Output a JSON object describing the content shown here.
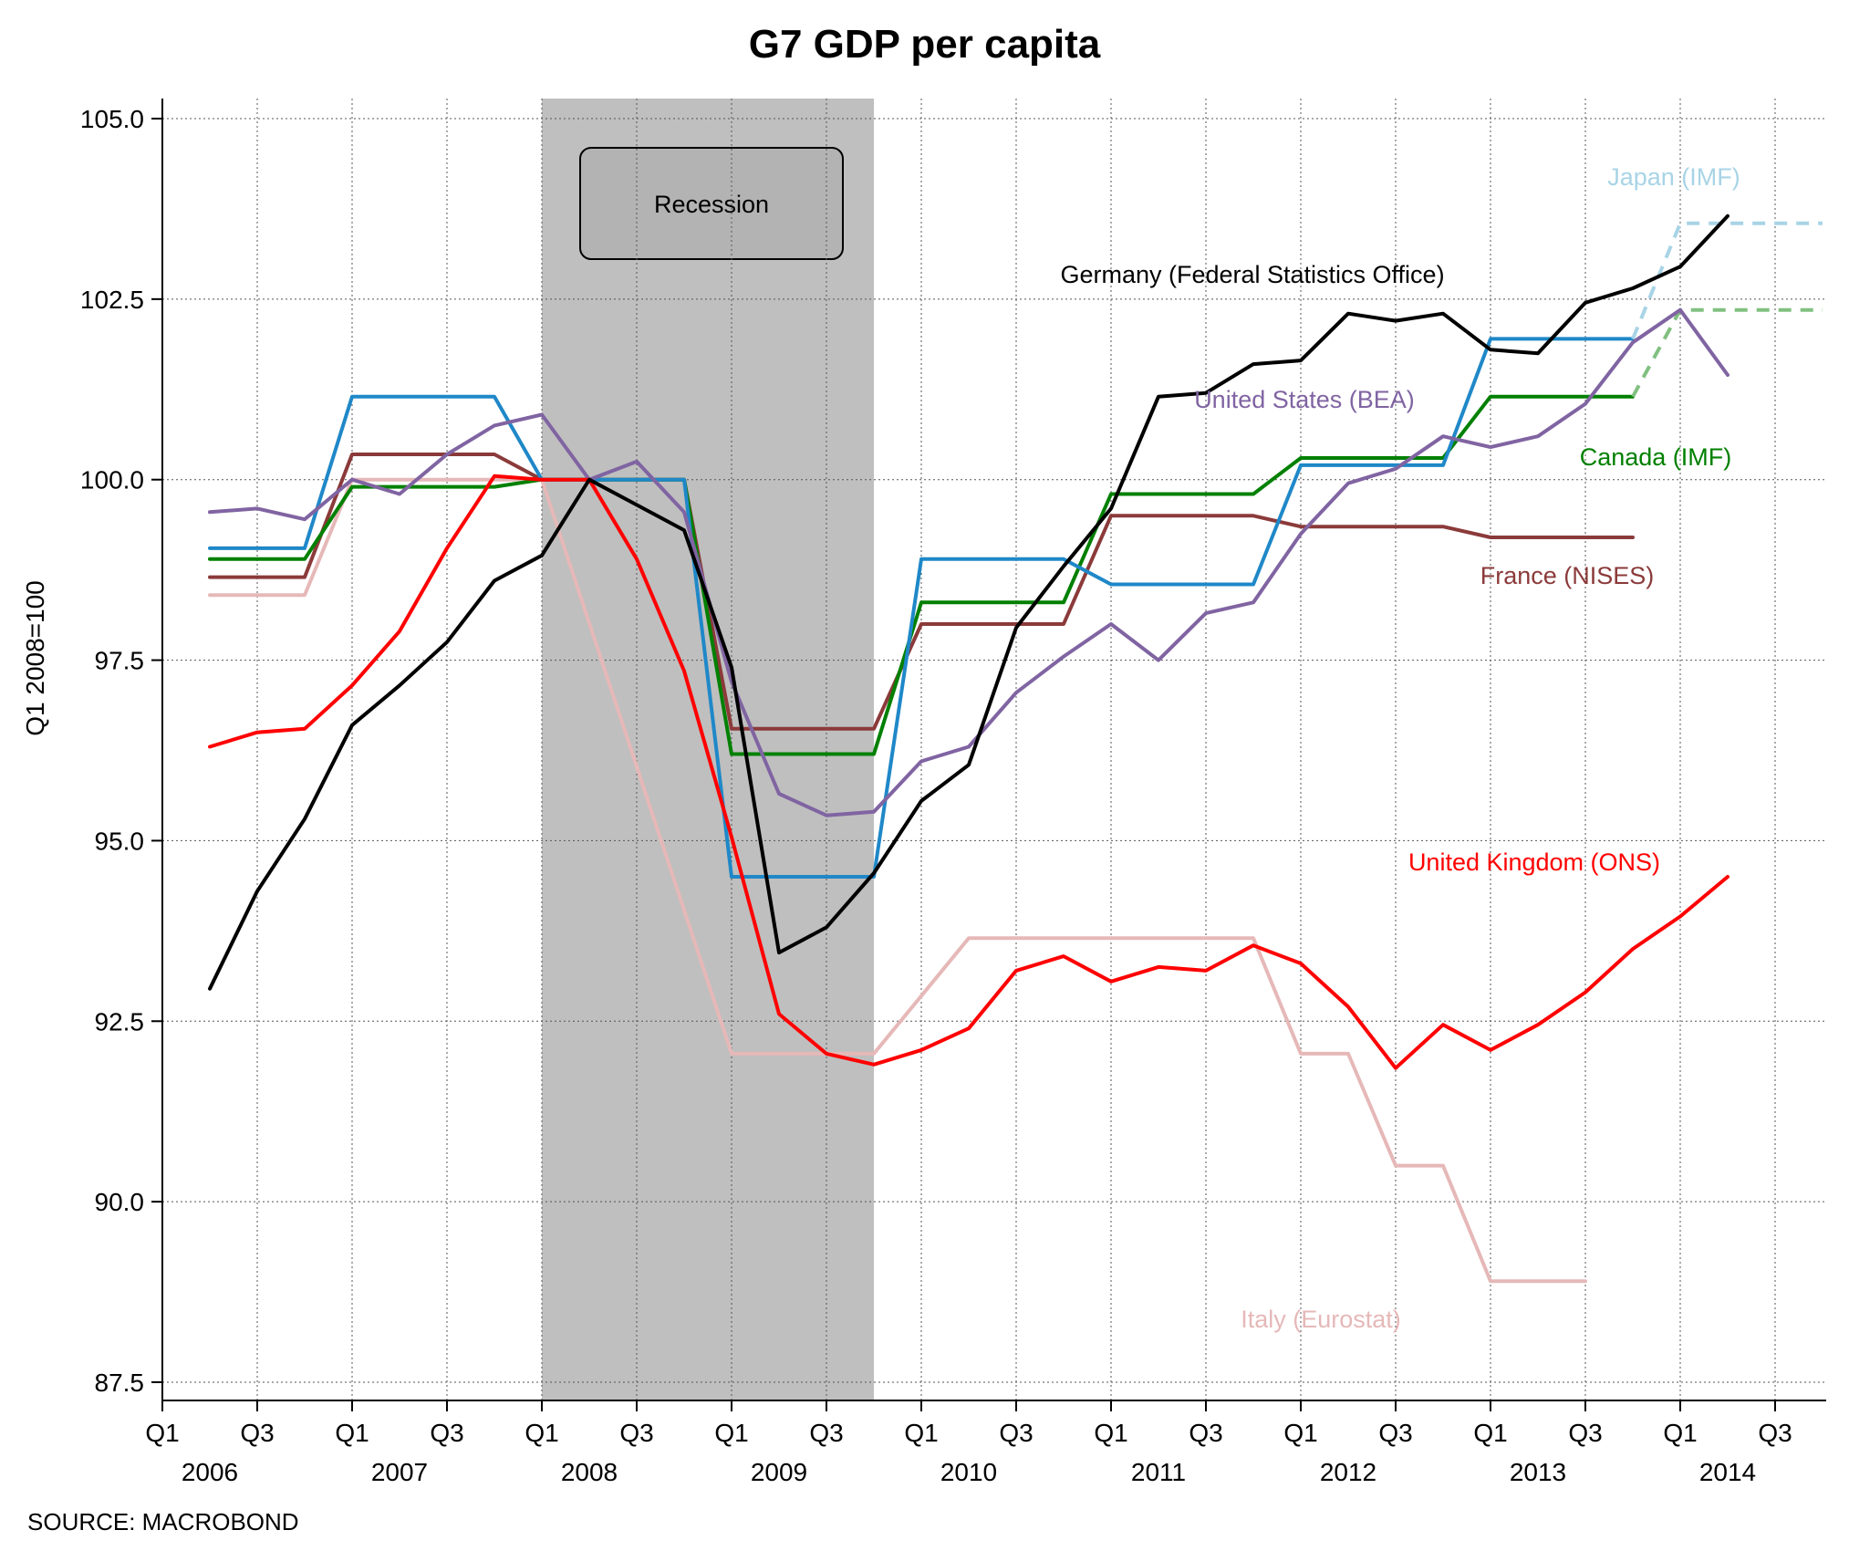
{
  "chart_data": {
    "type": "line",
    "title": "G7 GDP per capita",
    "ylabel": "Q1 2008=100",
    "source": "SOURCE: MACROBOND",
    "ylim": [
      87.5,
      105.0
    ],
    "yticks": [
      "87.5",
      "90.0",
      "92.5",
      "95.0",
      "97.5",
      "100.0",
      "102.5",
      "105.0"
    ],
    "xticks": [
      "Q1",
      "Q3",
      "Q1",
      "Q3",
      "Q1",
      "Q3",
      "Q1",
      "Q3",
      "Q1",
      "Q3",
      "Q1",
      "Q3",
      "Q1",
      "Q3",
      "Q1",
      "Q3",
      "Q1",
      "Q3"
    ],
    "years": [
      "2006",
      "2007",
      "2008",
      "2009",
      "2010",
      "2011",
      "2012",
      "2013",
      "2014"
    ],
    "x_start": "2006 Q1",
    "grid": true,
    "recession": {
      "label": "Recession",
      "start": "2008 Q1",
      "end": "2009 Q3"
    },
    "series": [
      {
        "name": "Italy (Eurostat)",
        "color": "#e6b8b8",
        "label_color": "#e6b8b8",
        "points": [
          [
            "2006 Q2",
            98.4
          ],
          [
            "2006 Q4",
            98.4
          ],
          [
            "2007 Q1",
            100.0
          ],
          [
            "2007 Q4",
            100.0
          ],
          [
            "2008 Q1",
            100.0
          ],
          [
            "2009 Q1",
            92.05
          ],
          [
            "2009 Q4",
            92.05
          ],
          [
            "2010 Q2",
            93.65
          ],
          [
            "2011 Q4",
            93.65
          ],
          [
            "2012 Q1",
            92.05
          ],
          [
            "2012 Q2",
            92.05
          ],
          [
            "2012 Q3",
            90.5
          ],
          [
            "2012 Q4",
            90.5
          ],
          [
            "2013 Q1",
            88.9
          ],
          [
            "2013 Q3",
            88.9
          ]
        ]
      },
      {
        "name": "France (NISES)",
        "color": "#8b3a3a",
        "label_color": "#8b3a3a",
        "points": [
          [
            "2006 Q2",
            98.65
          ],
          [
            "2006 Q4",
            98.65
          ],
          [
            "2007 Q1",
            100.35
          ],
          [
            "2007 Q4",
            100.35
          ],
          [
            "2008 Q1",
            100.0
          ],
          [
            "2008 Q4",
            100.0
          ],
          [
            "2009 Q1",
            96.55
          ],
          [
            "2009 Q4",
            96.55
          ],
          [
            "2010 Q1",
            98.0
          ],
          [
            "2010 Q4",
            98.0
          ],
          [
            "2011 Q1",
            99.5
          ],
          [
            "2011 Q4",
            99.5
          ],
          [
            "2012 Q1",
            99.35
          ],
          [
            "2012 Q4",
            99.35
          ],
          [
            "2013 Q1",
            99.2
          ],
          [
            "2013 Q4",
            99.2
          ]
        ]
      },
      {
        "name": "Canada (IMF)",
        "color": "#008000",
        "label_color": "#008000",
        "points": [
          [
            "2006 Q2",
            98.9
          ],
          [
            "2006 Q4",
            98.9
          ],
          [
            "2007 Q1",
            99.9
          ],
          [
            "2007 Q4",
            99.9
          ],
          [
            "2008 Q1",
            100.0
          ],
          [
            "2008 Q4",
            100.0
          ],
          [
            "2009 Q1",
            96.2
          ],
          [
            "2009 Q4",
            96.2
          ],
          [
            "2010 Q1",
            98.3
          ],
          [
            "2010 Q4",
            98.3
          ],
          [
            "2011 Q1",
            99.8
          ],
          [
            "2011 Q4",
            99.8
          ],
          [
            "2012 Q1",
            100.3
          ],
          [
            "2012 Q4",
            100.3
          ],
          [
            "2013 Q1",
            101.15
          ],
          [
            "2013 Q4",
            101.15
          ]
        ],
        "forecast": [
          [
            "2013 Q4",
            101.15
          ],
          [
            "2014 Q1",
            102.35
          ],
          [
            "2014 Q4",
            102.35
          ]
        ],
        "forecast_color": "#80c080"
      },
      {
        "name": "Japan (IMF)",
        "color": "#1f88c8",
        "label_color": "#a8d4e6",
        "points": [
          [
            "2006 Q2",
            99.05
          ],
          [
            "2006 Q4",
            99.05
          ],
          [
            "2007 Q1",
            101.15
          ],
          [
            "2007 Q4",
            101.15
          ],
          [
            "2008 Q1",
            100.0
          ],
          [
            "2008 Q4",
            100.0
          ],
          [
            "2009 Q1",
            94.5
          ],
          [
            "2009 Q4",
            94.5
          ],
          [
            "2010 Q1",
            98.9
          ],
          [
            "2010 Q4",
            98.9
          ],
          [
            "2011 Q1",
            98.55
          ],
          [
            "2011 Q4",
            98.55
          ],
          [
            "2012 Q1",
            100.2
          ],
          [
            "2012 Q4",
            100.2
          ],
          [
            "2013 Q1",
            101.95
          ],
          [
            "2013 Q4",
            101.95
          ]
        ],
        "forecast": [
          [
            "2013 Q4",
            101.95
          ],
          [
            "2014 Q1",
            103.55
          ],
          [
            "2014 Q4",
            103.55
          ]
        ],
        "forecast_color": "#a8d4e6"
      },
      {
        "name": "United States (BEA)",
        "color": "#8064a2",
        "label_color": "#8064a2",
        "points": [
          [
            "2006 Q2",
            99.55
          ],
          [
            "2006 Q3",
            99.6
          ],
          [
            "2006 Q4",
            99.45
          ],
          [
            "2007 Q1",
            100.0
          ],
          [
            "2007 Q2",
            99.8
          ],
          [
            "2007 Q3",
            100.35
          ],
          [
            "2007 Q4",
            100.75
          ],
          [
            "2008 Q1",
            100.9
          ],
          [
            "2008 Q2",
            100.0
          ],
          [
            "2008 Q3",
            100.25
          ],
          [
            "2008 Q4",
            99.55
          ],
          [
            "2009 Q1",
            97.2
          ],
          [
            "2009 Q2",
            95.65
          ],
          [
            "2009 Q3",
            95.35
          ],
          [
            "2009 Q4",
            95.4
          ],
          [
            "2010 Q1",
            96.1
          ],
          [
            "2010 Q2",
            96.3
          ],
          [
            "2010 Q3",
            97.05
          ],
          [
            "2010 Q4",
            97.55
          ],
          [
            "2011 Q1",
            98.0
          ],
          [
            "2011 Q2",
            97.5
          ],
          [
            "2011 Q3",
            98.15
          ],
          [
            "2011 Q4",
            98.3
          ],
          [
            "2012 Q1",
            99.25
          ],
          [
            "2012 Q2",
            99.95
          ],
          [
            "2012 Q3",
            100.15
          ],
          [
            "2012 Q4",
            100.6
          ],
          [
            "2013 Q1",
            100.45
          ],
          [
            "2013 Q2",
            100.6
          ],
          [
            "2013 Q3",
            101.05
          ],
          [
            "2013 Q4",
            101.9
          ],
          [
            "2014 Q1",
            102.35
          ],
          [
            "2014 Q2",
            101.45
          ]
        ]
      },
      {
        "name": "United Kingdom (ONS)",
        "color": "#ff0000",
        "label_color": "#ff0000",
        "points": [
          [
            "2006 Q2",
            96.3
          ],
          [
            "2006 Q3",
            96.5
          ],
          [
            "2006 Q4",
            96.55
          ],
          [
            "2007 Q1",
            97.15
          ],
          [
            "2007 Q2",
            97.9
          ],
          [
            "2007 Q3",
            99.05
          ],
          [
            "2007 Q4",
            100.05
          ],
          [
            "2008 Q1",
            100.0
          ],
          [
            "2008 Q2",
            100.0
          ],
          [
            "2008 Q3",
            98.9
          ],
          [
            "2008 Q4",
            97.35
          ],
          [
            "2009 Q1",
            95.05
          ],
          [
            "2009 Q2",
            92.6
          ],
          [
            "2009 Q3",
            92.05
          ],
          [
            "2009 Q4",
            91.9
          ],
          [
            "2010 Q1",
            92.1
          ],
          [
            "2010 Q2",
            92.4
          ],
          [
            "2010 Q3",
            93.2
          ],
          [
            "2010 Q4",
            93.4
          ],
          [
            "2011 Q1",
            93.05
          ],
          [
            "2011 Q2",
            93.25
          ],
          [
            "2011 Q3",
            93.2
          ],
          [
            "2011 Q4",
            93.55
          ],
          [
            "2012 Q1",
            93.3
          ],
          [
            "2012 Q2",
            92.7
          ],
          [
            "2012 Q3",
            91.85
          ],
          [
            "2012 Q4",
            92.45
          ],
          [
            "2013 Q1",
            92.1
          ],
          [
            "2013 Q2",
            92.45
          ],
          [
            "2013 Q3",
            92.9
          ],
          [
            "2013 Q4",
            93.5
          ],
          [
            "2014 Q1",
            93.95
          ],
          [
            "2014 Q2",
            94.5
          ]
        ]
      },
      {
        "name": "Germany (Federal Statistics Office)",
        "color": "#000000",
        "label_color": "#000000",
        "points": [
          [
            "2006 Q2",
            92.95
          ],
          [
            "2006 Q3",
            94.3
          ],
          [
            "2006 Q4",
            95.3
          ],
          [
            "2007 Q1",
            96.6
          ],
          [
            "2007 Q2",
            97.15
          ],
          [
            "2007 Q3",
            97.75
          ],
          [
            "2007 Q4",
            98.6
          ],
          [
            "2008 Q1",
            98.95
          ],
          [
            "2008 Q2",
            100.0
          ],
          [
            "2008 Q3",
            99.65
          ],
          [
            "2008 Q4",
            99.3
          ],
          [
            "2009 Q1",
            97.4
          ],
          [
            "2009 Q2",
            93.45
          ],
          [
            "2009 Q3",
            93.8
          ],
          [
            "2009 Q4",
            94.55
          ],
          [
            "2010 Q1",
            95.55
          ],
          [
            "2010 Q2",
            96.05
          ],
          [
            "2010 Q3",
            97.95
          ],
          [
            "2010 Q4",
            98.8
          ],
          [
            "2011 Q1",
            99.6
          ],
          [
            "2011 Q2",
            101.15
          ],
          [
            "2011 Q3",
            101.2
          ],
          [
            "2011 Q4",
            101.6
          ],
          [
            "2012 Q1",
            101.65
          ],
          [
            "2012 Q2",
            102.3
          ],
          [
            "2012 Q3",
            102.2
          ],
          [
            "2012 Q4",
            102.3
          ],
          [
            "2013 Q1",
            101.8
          ],
          [
            "2013 Q2",
            101.75
          ],
          [
            "2013 Q3",
            102.45
          ],
          [
            "2013 Q4",
            102.65
          ],
          [
            "2014 Q1",
            102.95
          ],
          [
            "2014 Q2",
            103.65
          ]
        ]
      }
    ]
  }
}
